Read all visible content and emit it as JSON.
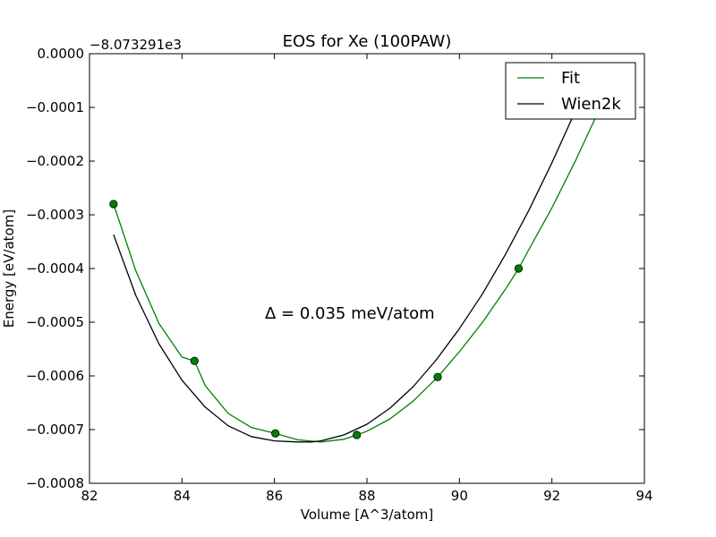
{
  "chart_data": {
    "type": "line",
    "title": "EOS for Xe (100PAW)",
    "xlabel": "Volume [A^3/atom]",
    "ylabel": "Energy [eV/atom]",
    "y_offset_label": "−8.073291e3",
    "annotation": "Δ = 0.035 meV/atom",
    "xlim": [
      82,
      94
    ],
    "ylim": [
      -0.0008,
      0.0
    ],
    "x_ticks": [
      82,
      84,
      86,
      88,
      90,
      92,
      94
    ],
    "x_tick_labels": [
      "82",
      "84",
      "86",
      "88",
      "90",
      "92",
      "94"
    ],
    "y_ticks": [
      0.0,
      -0.0001,
      -0.0002,
      -0.0003,
      -0.0004,
      -0.0005,
      -0.0006,
      -0.0007,
      -0.0008
    ],
    "y_tick_labels": [
      "0.0000",
      "−0.0001",
      "−0.0002",
      "−0.0003",
      "−0.0004",
      "−0.0005",
      "−0.0006",
      "−0.0007",
      "−0.0008"
    ],
    "grid": false,
    "legend_position": "top-right",
    "series": [
      {
        "name": "Fit",
        "kind": "line",
        "color": "#008000",
        "x": [
          82.52,
          83.0,
          83.5,
          84.0,
          84.27,
          84.5,
          85.0,
          85.5,
          86.02,
          86.5,
          87.0,
          87.5,
          87.78,
          88.0,
          88.5,
          89.0,
          89.53,
          90.0,
          90.5,
          91.0,
          91.28,
          91.5,
          92.0,
          92.5,
          93.1
        ],
        "y": [
          -0.00028,
          -0.000404,
          -0.000502,
          -0.000565,
          -0.000572,
          -0.000618,
          -0.00067,
          -0.000696,
          -0.000707,
          -0.000719,
          -0.000723,
          -0.000718,
          -0.00071,
          -0.000703,
          -0.00068,
          -0.000647,
          -0.000602,
          -0.000555,
          -0.0005,
          -0.000438,
          -0.0004,
          -0.000365,
          -0.000287,
          -0.000201,
          -9e-05
        ]
      },
      {
        "name": "",
        "kind": "points",
        "color": "#008000",
        "x": [
          82.52,
          84.27,
          86.02,
          87.78,
          89.53,
          91.28
        ],
        "y": [
          -0.00028,
          -0.000572,
          -0.000707,
          -0.00071,
          -0.000602,
          -0.0004
        ]
      },
      {
        "name": "Wien2k",
        "kind": "line",
        "color": "#000000",
        "x": [
          82.52,
          83.0,
          83.5,
          84.0,
          84.5,
          85.0,
          85.5,
          86.0,
          86.5,
          86.8,
          87.0,
          87.5,
          88.0,
          88.5,
          89.0,
          89.5,
          90.0,
          90.5,
          91.0,
          91.5,
          92.0,
          92.5,
          92.8
        ],
        "y": [
          -0.000337,
          -0.00045,
          -0.00054,
          -0.000608,
          -0.000658,
          -0.000693,
          -0.000713,
          -0.000721,
          -0.000723,
          -0.000723,
          -0.000721,
          -0.00071,
          -0.00069,
          -0.00066,
          -0.00062,
          -0.00057,
          -0.000512,
          -0.000447,
          -0.000373,
          -0.000292,
          -0.000203,
          -0.000108,
          -5e-05
        ]
      }
    ]
  }
}
